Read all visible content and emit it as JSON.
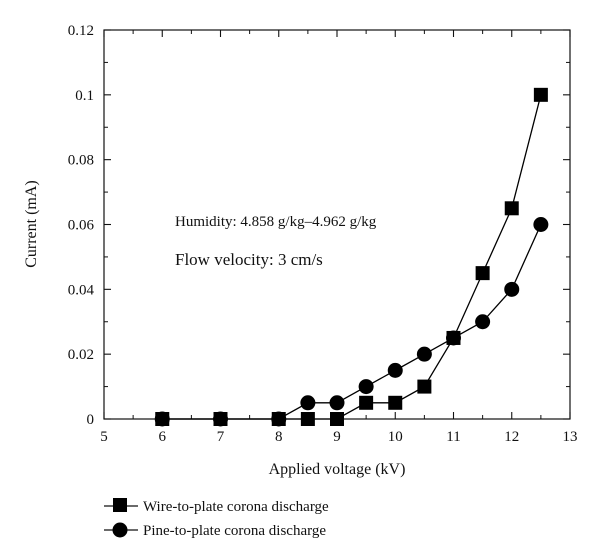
{
  "chart_data": {
    "type": "line",
    "xlabel": "Applied voltage (kV)",
    "ylabel": "Current (mA)",
    "xlim": [
      5,
      13
    ],
    "ylim": [
      0,
      0.12
    ],
    "xticks": [
      "5",
      "6",
      "7",
      "8",
      "9",
      "10",
      "11",
      "12",
      "13"
    ],
    "yticks": [
      "0",
      "0.02",
      "0.04",
      "0.06",
      "0.08",
      "0.1",
      "0.12"
    ],
    "grid": false,
    "legend_placement": "bottom-left, below plot",
    "annotations": [
      "Humidity: 4.858 g/kg–4.962 g/kg",
      "Flow velocity: 3 cm/s"
    ],
    "series": [
      {
        "name": "Wire-to-plate corona discharge",
        "marker": "square",
        "color": "#000000",
        "x": [
          6,
          7,
          8,
          8.5,
          9,
          9.5,
          10,
          10.5,
          11,
          11.5,
          12,
          12.5
        ],
        "y": [
          0,
          0,
          0,
          0,
          0,
          0.005,
          0.005,
          0.01,
          0.025,
          0.045,
          0.065,
          0.1
        ]
      },
      {
        "name": "Pine-to-plate corona discharge",
        "marker": "circle",
        "color": "#000000",
        "x": [
          6,
          7,
          8,
          8.5,
          9,
          9.5,
          10,
          10.5,
          11,
          11.5,
          12,
          12.5
        ],
        "y": [
          0,
          0,
          0,
          0.005,
          0.005,
          0.01,
          0.015,
          0.02,
          0.025,
          0.03,
          0.04,
          0.06
        ]
      }
    ]
  }
}
